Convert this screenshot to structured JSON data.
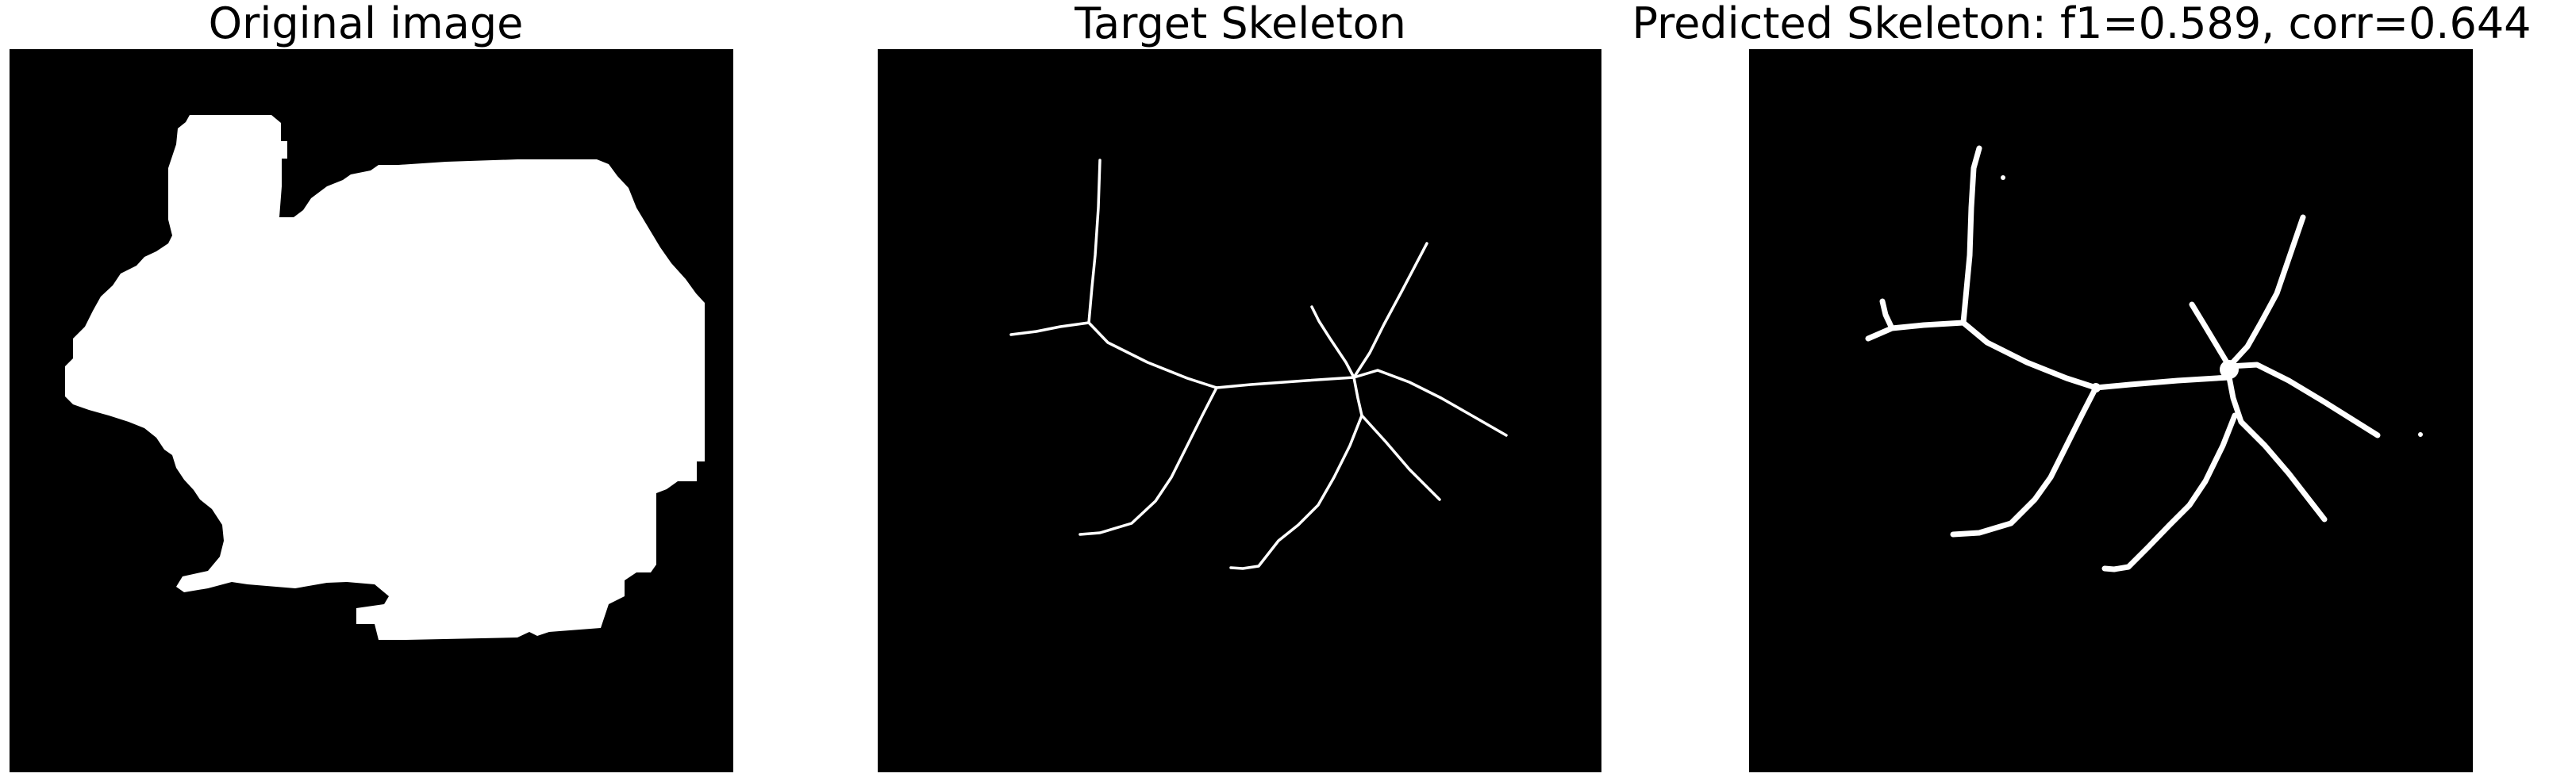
{
  "panels": [
    {
      "title": "Original image"
    },
    {
      "title": "Target Skeleton"
    },
    {
      "title": "Predicted Skeleton: f1=0.589, corr=0.644"
    }
  ],
  "colors": {
    "background": "#000000",
    "foreground": "#ffffff"
  }
}
